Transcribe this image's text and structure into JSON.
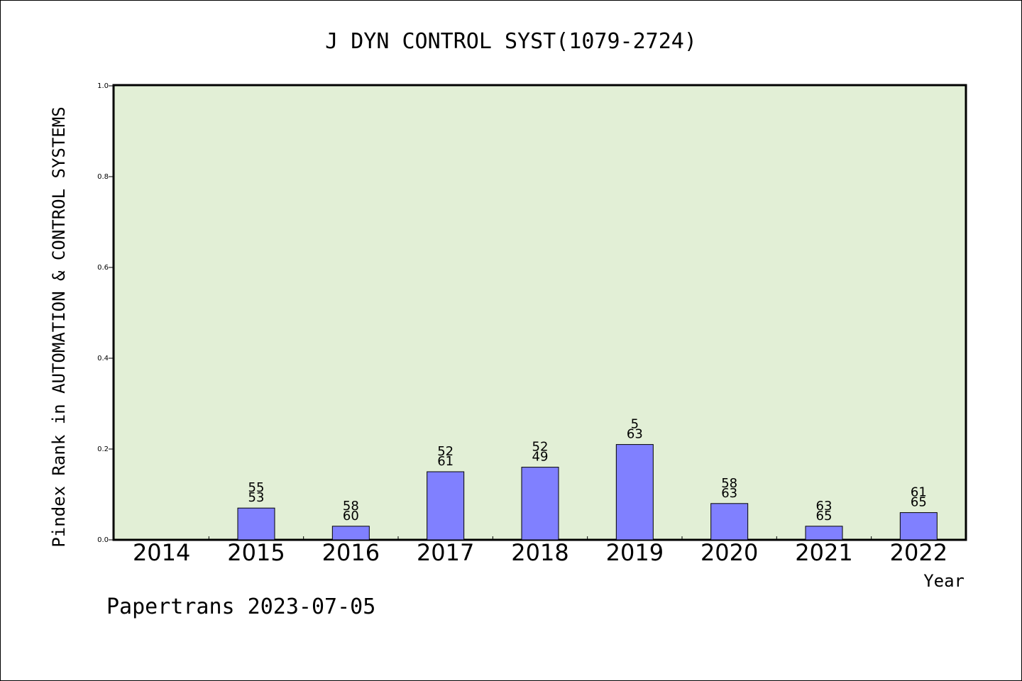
{
  "chart_data": {
    "type": "bar",
    "title": "J DYN CONTROL SYST(1079-2724)",
    "xlabel": "Year",
    "ylabel": "Pindex Rank in AUTOMATION & CONTROL SYSTEMS",
    "categories": [
      "2014",
      "2015",
      "2016",
      "2017",
      "2018",
      "2019",
      "2020",
      "2021",
      "2022"
    ],
    "values": [
      0.0,
      0.07,
      0.03,
      0.15,
      0.16,
      0.21,
      0.08,
      0.03,
      0.06
    ],
    "bar_labels_top": [
      "",
      "55",
      "58",
      "52",
      "52",
      "5",
      "58",
      "63",
      "61"
    ],
    "bar_labels_bottom": [
      "",
      "53",
      "60",
      "61",
      "49",
      "63",
      "63",
      "65",
      "65"
    ],
    "ylim": [
      0.0,
      1.0
    ],
    "yticks": [
      "0.0",
      "0.2",
      "0.4",
      "0.6",
      "0.8",
      "1.0"
    ],
    "grid": false,
    "colors": {
      "bar": "#8080ff",
      "plot_background": "#e2efd6",
      "axes": "#000000"
    }
  },
  "footer": {
    "credit": "Papertrans 2023-07-05"
  }
}
